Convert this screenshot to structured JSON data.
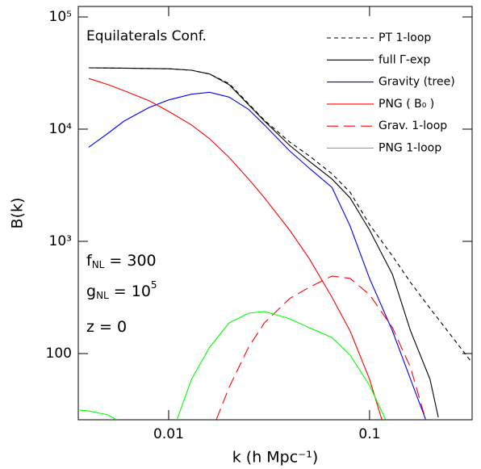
{
  "chart_data": {
    "type": "line",
    "ylabel": "B(k)",
    "xlabel": "k (h Mpc⁻¹)",
    "xscale": "log",
    "yscale": "log",
    "xlim": [
      0.00355,
      0.324
    ],
    "ylim": [
      25.7,
      124000
    ],
    "xticks": [
      0.01,
      0.1
    ],
    "yticks": [
      100,
      {
        "value": 1000,
        "label": "10³"
      },
      {
        "value": 10000,
        "label": "10⁴"
      },
      {
        "value": 100000,
        "label": "10⁵"
      }
    ],
    "legend": "upper right",
    "annotations": [
      {
        "base": "Equilaterals Conf."
      },
      {
        "base": "f",
        "sub": "NL",
        "rest": " = 300"
      },
      {
        "base": "g",
        "sub": "NL",
        "rest": " = 10",
        "sup": "5"
      },
      {
        "base": "z = 0"
      }
    ],
    "series": [
      {
        "name": "PT 1-loop",
        "color": "#000000",
        "dash": "short",
        "x": [
          0.004,
          0.006,
          0.01,
          0.013,
          0.016,
          0.02,
          0.03,
          0.04,
          0.05,
          0.065,
          0.08,
          0.1,
          0.13,
          0.16,
          0.2,
          0.25,
          0.32
        ],
        "values": [
          35200,
          35000,
          34500,
          33500,
          31000,
          25500,
          12000,
          7700,
          5800,
          4000,
          2740,
          1410,
          740,
          430,
          253,
          151,
          85
        ]
      },
      {
        "name": "full Γ-exp",
        "color": "#000000",
        "dash": "solid",
        "x": [
          0.004,
          0.006,
          0.01,
          0.013,
          0.016,
          0.02,
          0.03,
          0.04,
          0.05,
          0.065,
          0.08,
          0.1,
          0.13,
          0.16,
          0.2,
          0.22
        ],
        "values": [
          35200,
          35000,
          34500,
          33500,
          31000,
          24900,
          11800,
          7180,
          5190,
          3600,
          2440,
          1260,
          507,
          159,
          59,
          27
        ]
      },
      {
        "name": "Gravity (tree)",
        "color": "#0000ff",
        "dash": "solid",
        "x": [
          0.004,
          0.005,
          0.006,
          0.008,
          0.01,
          0.013,
          0.016,
          0.02,
          0.025,
          0.03,
          0.04,
          0.05,
          0.065,
          0.08,
          0.1,
          0.13,
          0.16,
          0.19
        ],
        "values": [
          6900,
          9200,
          11800,
          15600,
          18200,
          20500,
          21300,
          19300,
          15000,
          10900,
          6400,
          4500,
          3030,
          1370,
          467,
          159,
          59,
          26
        ]
      },
      {
        "name": "PNG ( B₀ )",
        "color": "#ff0000",
        "dash": "solid",
        "x": [
          0.004,
          0.005,
          0.006,
          0.008,
          0.01,
          0.013,
          0.016,
          0.02,
          0.025,
          0.03,
          0.04,
          0.05,
          0.065,
          0.08,
          0.1,
          0.115
        ],
        "values": [
          28300,
          24900,
          22000,
          17900,
          14400,
          10900,
          8200,
          5600,
          3600,
          2440,
          1260,
          705,
          318,
          159,
          59,
          26
        ]
      },
      {
        "name": "Grav. 1-loop",
        "color": "#ff0000",
        "dash": "long",
        "x": [
          0.0173,
          0.02,
          0.025,
          0.03,
          0.04,
          0.05,
          0.065,
          0.08,
          0.1,
          0.13,
          0.16,
          0.19
        ],
        "values": [
          26,
          50,
          114,
          188,
          309,
          389,
          490,
          467,
          335,
          170,
          75,
          26
        ]
      },
      {
        "name": "PNG 1-loop",
        "color": "#00ff00",
        "dash": "solid",
        "x": [
          0.0036,
          0.004,
          0.005,
          0.0055,
          0.008,
          0.011,
          0.013,
          0.016,
          0.02,
          0.025,
          0.03,
          0.04,
          0.05,
          0.065,
          0.08,
          0.1,
          0.12
        ],
        "values": [
          31.4,
          30.8,
          28.4,
          25.7,
          null,
          25.7,
          59,
          114,
          188,
          229,
          237,
          204,
          170,
          139,
          97,
          52,
          26
        ]
      }
    ]
  }
}
